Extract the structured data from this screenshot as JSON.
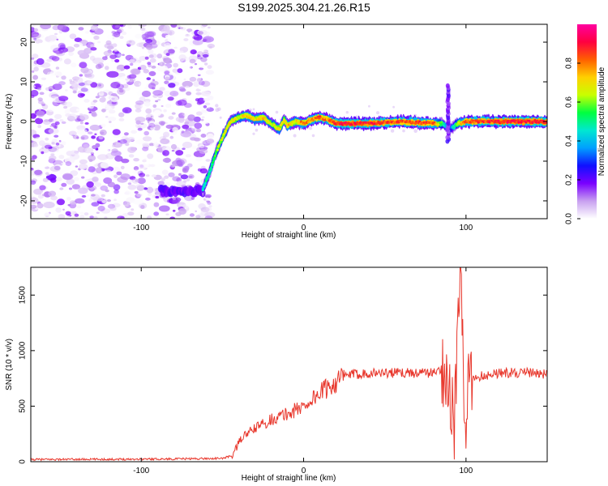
{
  "title": "S199.2025.304.21.26.R15",
  "chart_data": [
    {
      "type": "heatmap",
      "xlabel": "Height of straight line (km)",
      "ylabel": "Frequency (Hz)",
      "xlim": [
        -168,
        150
      ],
      "ylim": [
        -24.5,
        24.5
      ],
      "xticks": [
        -100,
        0,
        100
      ],
      "xtick_labels": [
        "-100",
        "0",
        "100"
      ],
      "yticks": [
        -20,
        -10,
        0,
        10,
        20
      ],
      "ytick_labels": [
        "-20",
        "-10",
        "0",
        "10",
        "20"
      ],
      "colorbar": {
        "label": "Normalized spectral amplitude",
        "range": [
          0,
          1
        ],
        "ticks": [
          0,
          0.2,
          0.4,
          0.6,
          0.8
        ],
        "tick_labels": [
          "0.0",
          "0.2",
          "0.4",
          "0.6",
          "0.8"
        ],
        "colors": [
          "#ffffff",
          "#c8a0f0",
          "#7a00ff",
          "#1010ff",
          "#00a0ff",
          "#00e8d0",
          "#00ff40",
          "#c8ff00",
          "#ffd000",
          "#ff6000",
          "#ff0040",
          "#ff00a0"
        ]
      },
      "ridge": {
        "x": [
          -62,
          -58,
          -55,
          -50,
          -45,
          -40,
          -35,
          -30,
          -25,
          -20,
          -15,
          -12,
          -10,
          -5,
          0,
          5,
          10,
          15,
          20,
          40,
          60,
          80,
          85,
          90,
          95,
          100,
          120,
          150
        ],
        "y": [
          -17,
          -13,
          -9,
          -4,
          0,
          1,
          1.5,
          0.5,
          1,
          -0.5,
          -2,
          0.5,
          -1,
          0,
          -0.5,
          0.5,
          1,
          0.5,
          -0.5,
          -0.5,
          0,
          -0.5,
          -0.5,
          -2,
          -0.5,
          0,
          0,
          0
        ],
        "intensity": [
          0.5,
          0.55,
          0.6,
          0.7,
          0.75,
          0.7,
          0.8,
          0.75,
          0.8,
          0.7,
          0.75,
          0.7,
          0.8,
          0.75,
          0.85,
          0.85,
          0.9,
          0.85,
          0.95,
          0.95,
          0.9,
          0.9,
          0.6,
          0.3,
          0.7,
          0.9,
          0.95,
          0.95
        ]
      },
      "low_band": {
        "x": [
          -88,
          -62
        ],
        "y": -17.5,
        "intensity": 0.2
      },
      "noise_region": {
        "x": [
          -168,
          -57
        ],
        "y": [
          -24.5,
          24.5
        ],
        "intensity_range": [
          0.0,
          0.2
        ]
      }
    },
    {
      "type": "line",
      "xlabel": "Height of straight line (km)",
      "ylabel": "SNR (10 * v/v)",
      "xlim": [
        -168,
        150
      ],
      "ylim": [
        0,
        1750
      ],
      "xticks": [
        -100,
        0,
        100
      ],
      "xtick_labels": [
        "-100",
        "0",
        "100"
      ],
      "yticks": [
        0,
        500,
        1000,
        1500
      ],
      "ytick_labels": [
        "0",
        "500",
        "1000",
        "1500"
      ],
      "color": "#e8372c",
      "series": [
        {
          "name": "SNR",
          "x": [
            -168,
            -120,
            -80,
            -50,
            -44,
            -38,
            -30,
            -20,
            -10,
            0,
            10,
            20,
            27,
            40,
            60,
            80,
            88,
            93,
            95,
            97,
            99,
            102,
            105,
            120,
            140,
            150
          ],
          "y": [
            20,
            22,
            25,
            30,
            55,
            220,
            300,
            380,
            430,
            500,
            620,
            720,
            780,
            800,
            800,
            800,
            850,
            300,
            1300,
            1750,
            200,
            700,
            760,
            800,
            800,
            790
          ]
        }
      ]
    }
  ]
}
